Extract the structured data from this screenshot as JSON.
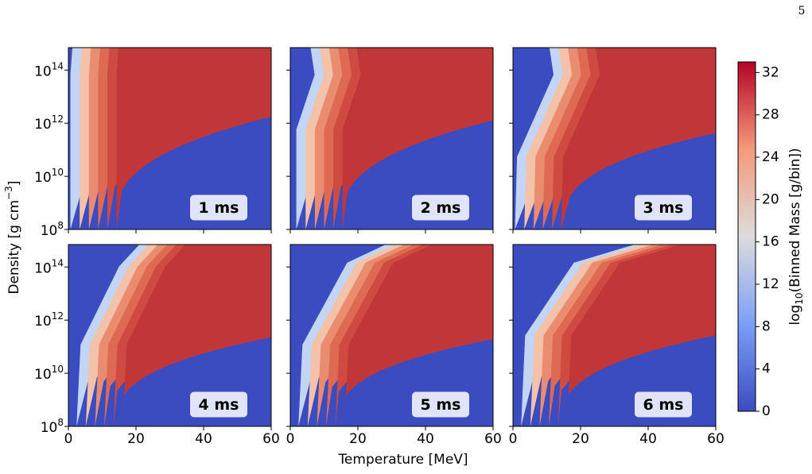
{
  "page_number": "5",
  "shared": {
    "xlabel": "Temperature [MeV]",
    "ylabel": "Density [g cm^{−3}]"
  },
  "colorbar": {
    "label": "log_{10}(Binned Mass [g/bin])",
    "clim": [
      0,
      33
    ],
    "ticks": [
      0,
      4,
      8,
      12,
      16,
      20,
      24,
      28,
      32
    ],
    "colormap": "coolwarm"
  },
  "chart_data": [
    {
      "type": "contour",
      "label": "1 ms",
      "xlim": [
        0,
        60
      ],
      "xticks": [
        0,
        20,
        40,
        60
      ],
      "ylim": [
        100000000,
        700000000000000
      ],
      "yscale": "log",
      "yticks": [
        {
          "value": 100000000,
          "label": "10^{8}"
        },
        {
          "value": 10000000000,
          "label": "10^{10}"
        },
        {
          "value": 1000000000000,
          "label": "10^{12}"
        },
        {
          "value": 100000000000000,
          "label": "10^{14}"
        }
      ],
      "show_xticklabels": false,
      "show_yticklabels": true
    },
    {
      "type": "contour",
      "label": "2 ms",
      "xlim": [
        0,
        60
      ],
      "xticks": [
        0,
        20,
        40,
        60
      ],
      "ylim": [
        100000000,
        700000000000000
      ],
      "yscale": "log",
      "yticks": [
        {
          "value": 100000000,
          "label": "10^{8}"
        },
        {
          "value": 10000000000,
          "label": "10^{10}"
        },
        {
          "value": 1000000000000,
          "label": "10^{12}"
        },
        {
          "value": 100000000000000,
          "label": "10^{14}"
        }
      ],
      "show_xticklabels": false,
      "show_yticklabels": false
    },
    {
      "type": "contour",
      "label": "3 ms",
      "xlim": [
        0,
        60
      ],
      "xticks": [
        0,
        20,
        40,
        60
      ],
      "ylim": [
        100000000,
        700000000000000
      ],
      "yscale": "log",
      "yticks": [
        {
          "value": 100000000,
          "label": "10^{8}"
        },
        {
          "value": 10000000000,
          "label": "10^{10}"
        },
        {
          "value": 1000000000000,
          "label": "10^{12}"
        },
        {
          "value": 100000000000000,
          "label": "10^{14}"
        }
      ],
      "show_xticklabels": false,
      "show_yticklabels": false
    },
    {
      "type": "contour",
      "label": "4 ms",
      "xlim": [
        0,
        60
      ],
      "xticks": [
        0,
        20,
        40,
        60
      ],
      "ylim": [
        100000000,
        700000000000000
      ],
      "yscale": "log",
      "yticks": [
        {
          "value": 100000000,
          "label": "10^{8}"
        },
        {
          "value": 10000000000,
          "label": "10^{10}"
        },
        {
          "value": 1000000000000,
          "label": "10^{12}"
        },
        {
          "value": 100000000000000,
          "label": "10^{14}"
        }
      ],
      "show_xticklabels": true,
      "show_yticklabels": true
    },
    {
      "type": "contour",
      "label": "5 ms",
      "xlim": [
        0,
        60
      ],
      "xticks": [
        0,
        20,
        40,
        60
      ],
      "ylim": [
        100000000,
        700000000000000
      ],
      "yscale": "log",
      "yticks": [
        {
          "value": 100000000,
          "label": "10^{8}"
        },
        {
          "value": 10000000000,
          "label": "10^{10}"
        },
        {
          "value": 1000000000000,
          "label": "10^{12}"
        },
        {
          "value": 100000000000000,
          "label": "10^{14}"
        }
      ],
      "show_xticklabels": true,
      "show_yticklabels": false
    },
    {
      "type": "contour",
      "label": "6 ms",
      "xlim": [
        0,
        60
      ],
      "xticks": [
        0,
        20,
        40,
        60
      ],
      "ylim": [
        100000000,
        700000000000000
      ],
      "yscale": "log",
      "yticks": [
        {
          "value": 100000000,
          "label": "10^{8}"
        },
        {
          "value": 10000000000,
          "label": "10^{10}"
        },
        {
          "value": 1000000000000,
          "label": "10^{12}"
        },
        {
          "value": 100000000000000,
          "label": "10^{14}"
        }
      ],
      "show_xticklabels": true,
      "show_yticklabels": false
    }
  ]
}
